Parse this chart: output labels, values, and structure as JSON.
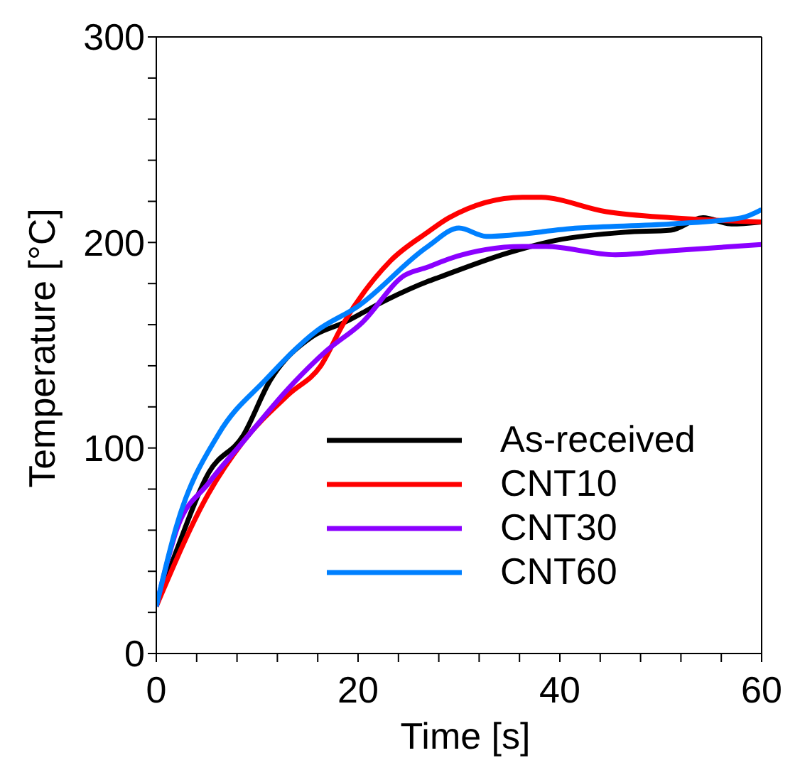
{
  "chart_data": {
    "type": "line",
    "xlabel": "Time [s]",
    "ylabel": "Temperature [°C]",
    "xlim": [
      0,
      60
    ],
    "xticks": [
      0,
      {
        "value": 4,
        "label": null
      },
      {
        "value": 8,
        "label": null
      },
      {
        "value": 12,
        "label": null
      },
      {
        "value": 16,
        "label": null
      },
      20,
      {
        "value": 24,
        "label": null
      },
      {
        "value": 28,
        "label": null
      },
      {
        "value": 32,
        "label": null
      },
      {
        "value": 36,
        "label": null
      },
      40,
      {
        "value": 44,
        "label": null
      },
      {
        "value": 48,
        "label": null
      },
      {
        "value": 52,
        "label": null
      },
      {
        "value": 56,
        "label": null
      },
      60
    ],
    "ylim": [
      0,
      300
    ],
    "yticks": [
      0,
      {
        "value": 20,
        "label": null
      },
      {
        "value": 40,
        "label": null
      },
      {
        "value": 60,
        "label": null
      },
      {
        "value": 80,
        "label": null
      },
      100,
      {
        "value": 120,
        "label": null
      },
      {
        "value": 140,
        "label": null
      },
      {
        "value": 160,
        "label": null
      },
      {
        "value": 180,
        "label": null
      },
      200,
      {
        "value": 220,
        "label": null
      },
      {
        "value": 240,
        "label": null
      },
      {
        "value": 260,
        "label": null
      },
      {
        "value": 280,
        "label": null
      },
      300
    ],
    "legend": "bottom right",
    "marker": "none",
    "line_style": "solid",
    "series": [
      {
        "name": "As-received",
        "color": "#000000",
        "x": [
          0,
          2,
          5.2,
          8.6,
          11.3,
          15.4,
          18.6,
          22.8,
          26.9,
          28,
          34.9,
          39.6,
          46.5,
          51,
          54.2,
          57,
          60
        ],
        "values": [
          23,
          50,
          88,
          106,
          133,
          154,
          161,
          172,
          181,
          183,
          195,
          201,
          205,
          206,
          212,
          209,
          210
        ]
      },
      {
        "name": "CNT10",
        "color": "#ff0000",
        "x": [
          0,
          5.2,
          8.6,
          13.1,
          16.3,
          18.6,
          23.2,
          26.9,
          29,
          36.3,
          38,
          44.6,
          51,
          60
        ],
        "values": [
          23,
          78,
          103,
          126,
          140,
          161,
          191,
          205,
          212,
          222,
          222,
          215,
          212,
          210
        ]
      },
      {
        "name": "CNT30",
        "color": "#8b00ff",
        "x": [
          0,
          2,
          5.2,
          8.6,
          13.1,
          16.8,
          20.4,
          24.6,
          26.9,
          29,
          36.3,
          38.6,
          45.5,
          51,
          60
        ],
        "values": [
          23,
          60,
          83,
          103,
          129,
          147,
          161,
          184,
          188,
          192,
          198,
          198,
          194,
          196,
          199
        ]
      },
      {
        "name": "CNT60",
        "color": "#0080ff",
        "x": [
          0,
          2,
          6.2,
          10.8,
          15.9,
          20,
          26.9,
          30,
          32.7,
          41.8,
          51,
          58,
          60
        ],
        "values": [
          23,
          62,
          107,
          133,
          157,
          169,
          198,
          207,
          203,
          207,
          209,
          212,
          216
        ]
      }
    ]
  }
}
